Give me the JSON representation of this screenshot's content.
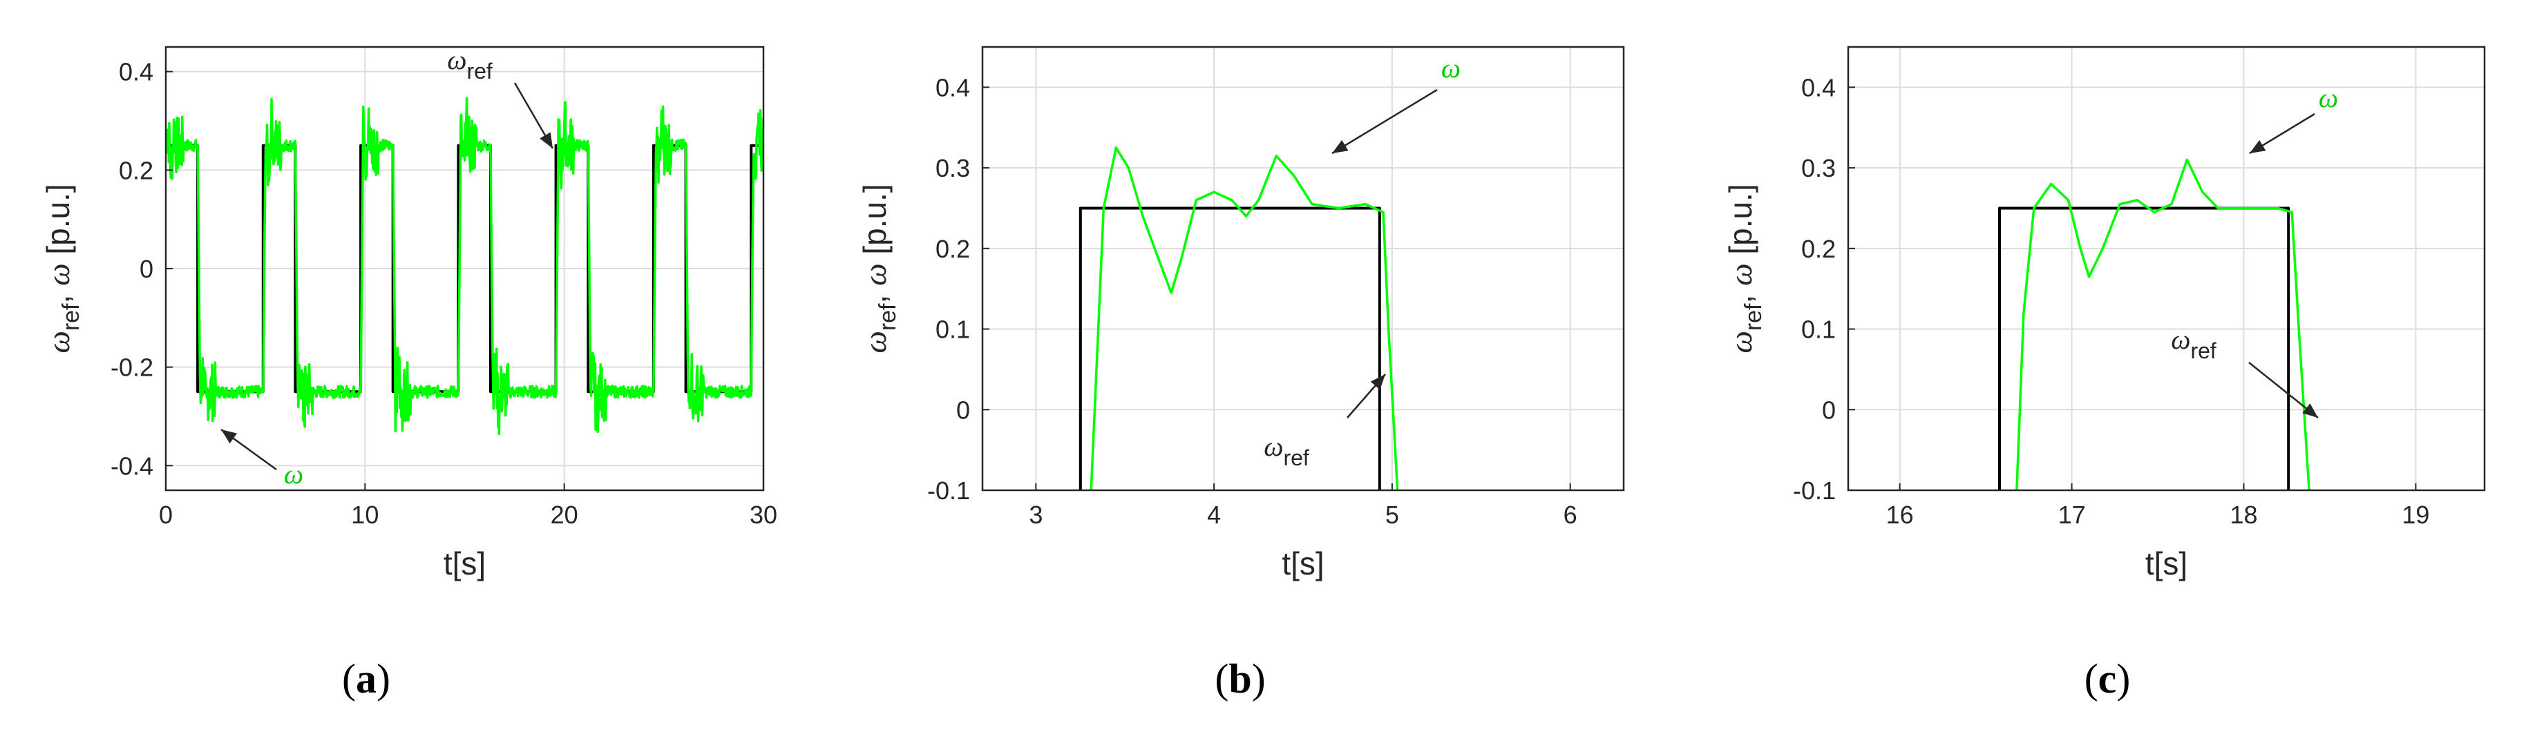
{
  "chart_data": [
    {
      "type": "line",
      "caption": "a",
      "xlabel": "t[s]",
      "ylabel": {
        "symbol": "ω",
        "sub": "ref",
        "symbol2": "ω",
        "unit": "[p.u.]"
      },
      "xlim": [
        0,
        30
      ],
      "ylim": [
        -0.45,
        0.45
      ],
      "xticks": [
        0,
        10,
        20,
        30
      ],
      "yticks": [
        -0.4,
        -0.2,
        0,
        0.2,
        0.4
      ],
      "yticklabels": [
        "-0.4",
        "-0.2",
        "0",
        "0.2",
        "0.4"
      ],
      "grid": true,
      "series": [
        {
          "name": "ωref",
          "color": "#000000",
          "kind": "square",
          "period": 4.9,
          "high": 0.25,
          "low": -0.25,
          "first_fall": 1.6,
          "duty_high": 0.33,
          "t_start": 0,
          "t_end": 30
        },
        {
          "name": "ω",
          "color": "#00ff00",
          "kind": "square-response",
          "period": 4.9,
          "high": 0.25,
          "low": -0.25,
          "first_fall": 1.6,
          "duty_high": 0.33,
          "t_start": 0,
          "t_end": 30
        }
      ],
      "annotations": [
        {
          "symbol": "ω",
          "sub": "ref",
          "x": 20,
          "y": 0.25
        },
        {
          "symbol": "ω",
          "sub": "",
          "x": 1.5,
          "y": -0.34
        }
      ]
    },
    {
      "type": "line",
      "caption": "b",
      "xlabel": "t[s]",
      "ylabel": {
        "symbol": "ω",
        "sub": "ref",
        "symbol2": "ω",
        "unit": "[p.u.]"
      },
      "xlim": [
        2.7,
        6.3
      ],
      "ylim": [
        -0.1,
        0.45
      ],
      "xticks": [
        3,
        4,
        5,
        6
      ],
      "yticks": [
        -0.1,
        0,
        0.1,
        0.2,
        0.3,
        0.4
      ],
      "yticklabels": [
        "-0.1",
        "0",
        "0.1",
        "0.2",
        "0.3",
        "0.4"
      ],
      "grid": true,
      "series": [
        {
          "name": "ωref",
          "color": "#000000",
          "points": [
            [
              3.25,
              -0.1
            ],
            [
              3.25,
              0.25
            ],
            [
              4.93,
              0.25
            ],
            [
              4.93,
              -0.1
            ]
          ]
        },
        {
          "name": "ω",
          "color": "#00ff00",
          "points": [
            [
              3.31,
              -0.1
            ],
            [
              3.35,
              0.1
            ],
            [
              3.38,
              0.25
            ],
            [
              3.45,
              0.325
            ],
            [
              3.52,
              0.3
            ],
            [
              3.6,
              0.24
            ],
            [
              3.7,
              0.18
            ],
            [
              3.76,
              0.145
            ],
            [
              3.82,
              0.19
            ],
            [
              3.9,
              0.26
            ],
            [
              4.0,
              0.27
            ],
            [
              4.1,
              0.26
            ],
            [
              4.18,
              0.24
            ],
            [
              4.25,
              0.26
            ],
            [
              4.35,
              0.315
            ],
            [
              4.45,
              0.29
            ],
            [
              4.55,
              0.255
            ],
            [
              4.7,
              0.25
            ],
            [
              4.85,
              0.255
            ],
            [
              4.95,
              0.245
            ],
            [
              4.98,
              0.1
            ],
            [
              5.03,
              -0.1
            ]
          ]
        }
      ],
      "annotations": [
        {
          "symbol": "ω",
          "sub": "",
          "x": 4.35,
          "y": 0.315
        },
        {
          "symbol": "ω",
          "sub": "ref",
          "x": 4.93,
          "y": 0.05
        }
      ]
    },
    {
      "type": "line",
      "caption": "c",
      "xlabel": "t[s]",
      "ylabel": {
        "symbol": "ω",
        "sub": "ref",
        "symbol2": "ω",
        "unit": "[p.u.]"
      },
      "xlim": [
        15.7,
        19.4
      ],
      "ylim": [
        -0.1,
        0.45
      ],
      "xticks": [
        16,
        17,
        18,
        19
      ],
      "yticks": [
        -0.1,
        0,
        0.1,
        0.2,
        0.3,
        0.4
      ],
      "yticklabels": [
        "-0.1",
        "0",
        "0.1",
        "0.2",
        "0.3",
        "0.4"
      ],
      "grid": true,
      "series": [
        {
          "name": "ωref",
          "color": "#000000",
          "points": [
            [
              16.58,
              -0.1
            ],
            [
              16.58,
              0.25
            ],
            [
              18.26,
              0.25
            ],
            [
              18.26,
              -0.1
            ]
          ]
        },
        {
          "name": "ω",
          "color": "#00ff00",
          "points": [
            [
              16.68,
              -0.1
            ],
            [
              16.72,
              0.12
            ],
            [
              16.78,
              0.25
            ],
            [
              16.88,
              0.28
            ],
            [
              16.98,
              0.26
            ],
            [
              17.05,
              0.2
            ],
            [
              17.1,
              0.165
            ],
            [
              17.18,
              0.2
            ],
            [
              17.28,
              0.255
            ],
            [
              17.38,
              0.26
            ],
            [
              17.48,
              0.245
            ],
            [
              17.58,
              0.255
            ],
            [
              17.67,
              0.31
            ],
            [
              17.76,
              0.27
            ],
            [
              17.85,
              0.25
            ],
            [
              18.0,
              0.25
            ],
            [
              18.2,
              0.25
            ],
            [
              18.28,
              0.245
            ],
            [
              18.32,
              0.1
            ],
            [
              18.38,
              -0.1
            ]
          ]
        }
      ],
      "annotations": [
        {
          "symbol": "ω",
          "sub": "",
          "x": 17.67,
          "y": 0.31
        },
        {
          "symbol": "ω",
          "sub": "ref",
          "x": 18.26,
          "y": 0.0
        }
      ]
    }
  ]
}
